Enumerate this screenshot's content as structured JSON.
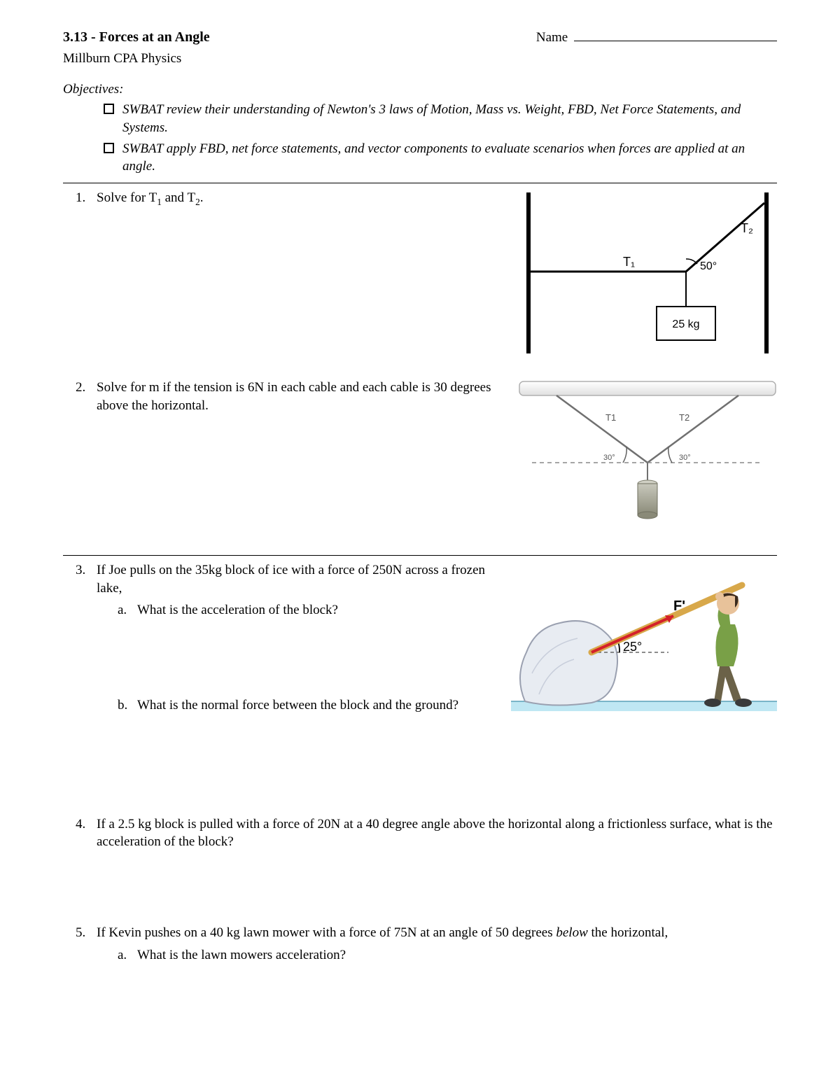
{
  "header": {
    "section_number": "3.13",
    "title": "Forces at an Angle",
    "name_label": "Name",
    "course": "Millburn CPA Physics"
  },
  "objectives": {
    "label": "Objectives:",
    "items": [
      "SWBAT review their understanding of Newton's 3 laws of Motion, Mass vs. Weight, FBD, Net Force Statements, and Systems.",
      "SWBAT apply FBD, net force statements, and vector components to evaluate scenarios when forces are applied at an angle."
    ]
  },
  "problems": [
    {
      "num": "1.",
      "text_html": "Solve for  T<sub>1</sub> and T<sub>2</sub>."
    },
    {
      "num": "2.",
      "text": "Solve for m if the tension is 6N in each cable and each cable is 30 degrees above the horizontal."
    },
    {
      "num": "3.",
      "text": "If Joe pulls on the 35kg block of ice with a force of 250N across a frozen lake,",
      "subs": [
        {
          "letter": "a.",
          "text": "What is the acceleration of the block?"
        },
        {
          "letter": "b.",
          "text": "What is the normal force between the block and the ground?"
        }
      ]
    },
    {
      "num": "4.",
      "text": " If a 2.5 kg block is pulled with a force of 20N at a 40 degree angle above the horizontal along a frictionless surface, what is the acceleration of the block?"
    },
    {
      "num": "5.",
      "text_html": "If Kevin pushes on a 40 kg lawn mower with a force of 75N at an angle of 50 degrees <span class=\"em\">below</span> the horizontal,",
      "subs": [
        {
          "letter": "a.",
          "text": "What is the lawn mowers acceleration?"
        }
      ]
    }
  ],
  "fig1": {
    "T1": "T₁",
    "T2": "T₂",
    "angle": "50°",
    "mass": "25 kg",
    "stroke": "#000000",
    "font": "Arial, sans-serif"
  },
  "fig2": {
    "T1": "T1",
    "T2": "T2",
    "angle_left": "30°",
    "angle_right": "30°",
    "bar_fill": "linear-gradient(#ffffff,#e8e8e8)",
    "dash_color": "#888888",
    "weight_fill": "#9a9a88"
  },
  "fig3": {
    "F_label": "F'",
    "angle": "25°",
    "ice_fill": "#e8ecf2",
    "ice_stroke": "#9aa0b0",
    "arrow_color": "#d4202a",
    "pole_color": "#d8a84a",
    "shirt_color": "#79a047",
    "pants_color": "#6b6248",
    "shoe_color": "#3a3a3a",
    "hair_color": "#3a2a1e",
    "skin_color": "#e8c29a",
    "ground_color": "#bfe7f3",
    "dash_color": "#666666"
  }
}
